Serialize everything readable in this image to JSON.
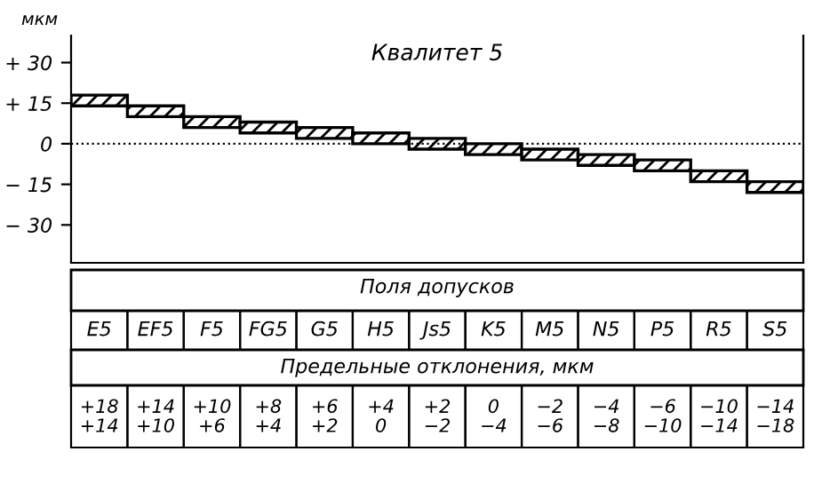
{
  "chart_data": {
    "type": "bar",
    "title": "Квалитет 5",
    "ylabel": "мкм",
    "categories": [
      "E5",
      "EF5",
      "F5",
      "FG5",
      "G5",
      "H5",
      "Js5",
      "K5",
      "M5",
      "N5",
      "P5",
      "R5",
      "S5"
    ],
    "values": [
      4,
      4,
      4,
      4,
      4,
      4,
      4,
      4,
      4,
      4,
      4,
      4,
      4
    ],
    "base": [
      14,
      10,
      6,
      4,
      2,
      0,
      -2,
      -4,
      -6,
      -8,
      -10,
      -14,
      -18
    ],
    "color": "#000000",
    "ylim": [
      -44,
      40
    ],
    "yticks": [
      {
        "value": 30,
        "label": "+ 30"
      },
      {
        "value": 15,
        "label": "+ 15"
      },
      0,
      {
        "value": -15,
        "label": "− 15"
      },
      {
        "value": -30,
        "label": "− 30"
      }
    ],
    "ref_lines": [
      {
        "axis": "y",
        "value": 0,
        "line_style": "dotted"
      }
    ],
    "annotations": [
      "Поля допусков",
      "Предельные отклонения, мкм",
      "+18\n+14",
      "+14\n+10",
      "+10\n+6",
      "+8\n+4",
      "+6\n+2",
      "+4\n0",
      "+2\n−2",
      "0\n−4",
      "−2\n−6",
      "−4\n−8",
      "−6\n−10",
      "−10\n−14",
      "−14\n−18"
    ]
  }
}
